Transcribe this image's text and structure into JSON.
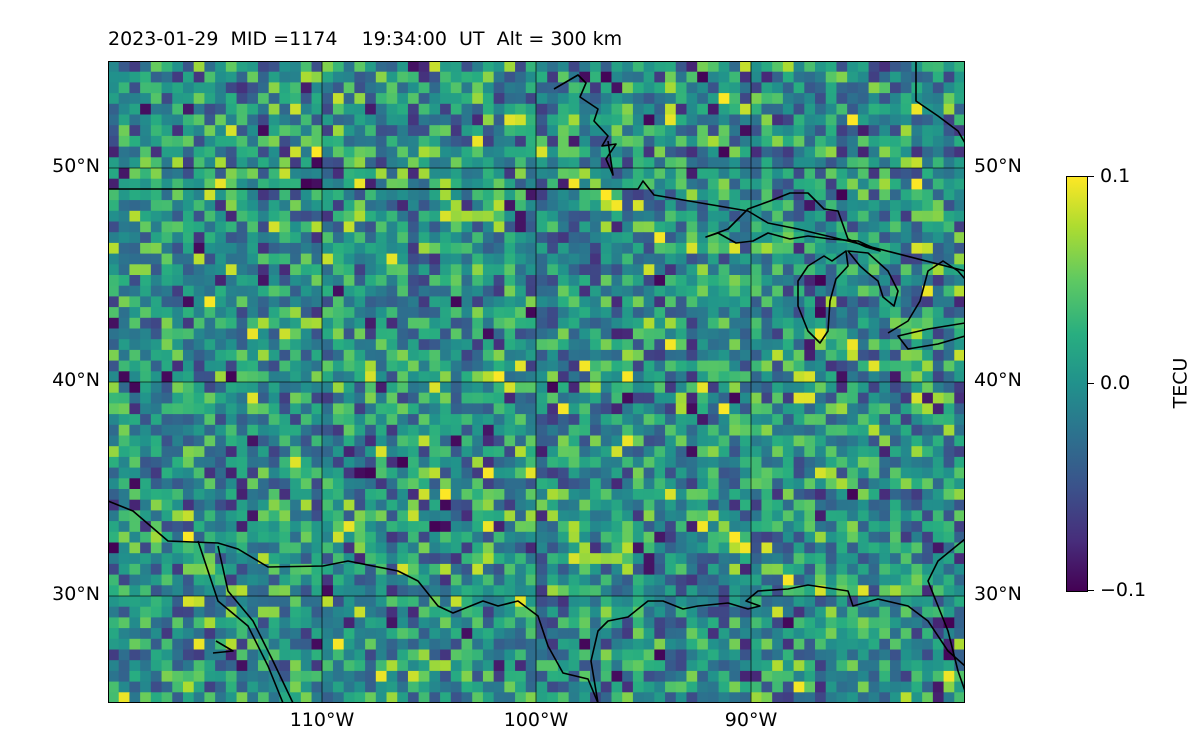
{
  "title": "2023-01-29  MID =1174    19:34:00  UT  Alt = 300 km",
  "map": {
    "lat_labels": [
      "50°N",
      "40°N",
      "30°N"
    ],
    "lon_labels": [
      "110°W",
      "100°W",
      "90°W"
    ],
    "lat_range": [
      25,
      55
    ],
    "lon_range": [
      -120,
      -80
    ],
    "gridlines": true
  },
  "colorbar": {
    "label": "TECU",
    "ticks": [
      "0.1",
      "0.0",
      "−0.1"
    ],
    "range": [
      -0.1,
      0.1
    ],
    "colormap": "viridis"
  }
}
